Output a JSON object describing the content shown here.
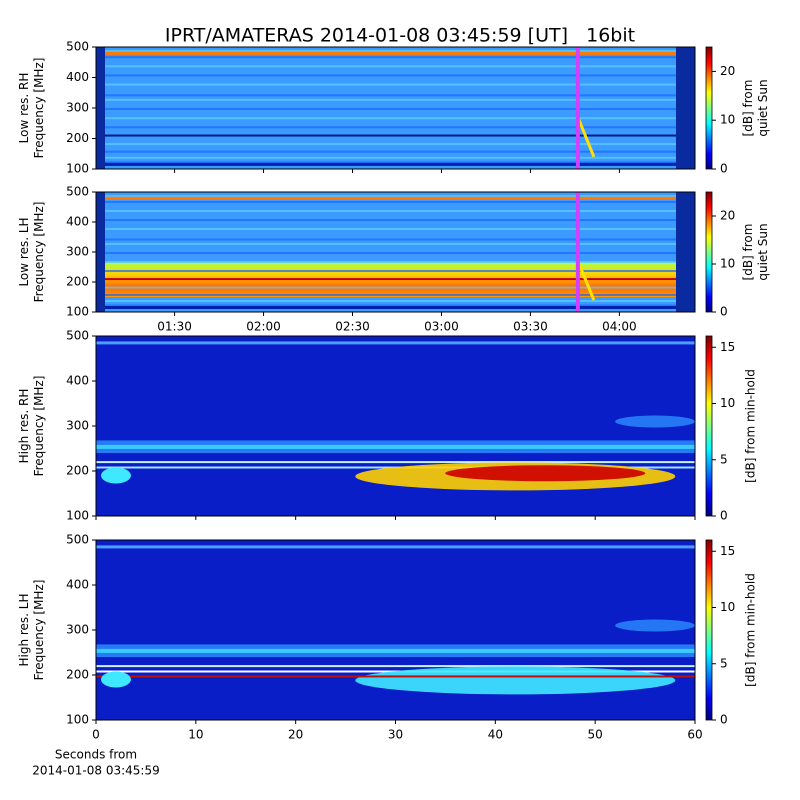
{
  "chart_data": [
    {
      "type": "heatmap",
      "title": "IPRT/AMATERAS 2014-01-08 03:45:59 [UT]   16bit",
      "ylabel": [
        "Low res. RH",
        "Frequency [MHz]"
      ],
      "ylim": [
        100,
        500
      ],
      "yticks": [
        100,
        200,
        300,
        400,
        500
      ],
      "xlim": [
        63.5,
        265.5
      ],
      "highlight_x": 226,
      "colorbar_label": [
        "[dB] from",
        "quiet Sun"
      ],
      "clim": [
        0,
        25
      ],
      "cticks": [
        0,
        10,
        20
      ],
      "colormap": "jet"
    },
    {
      "type": "heatmap",
      "ylabel": [
        "Low res. LH",
        "Frequency [MHz]"
      ],
      "ylim": [
        100,
        500
      ],
      "yticks": [
        100,
        200,
        300,
        400,
        500
      ],
      "xlim": [
        63.5,
        265.5
      ],
      "highlight_x": 226,
      "xticks": [
        {
          "value": 90,
          "label": "01:30"
        },
        {
          "value": 120,
          "label": "02:00"
        },
        {
          "value": 150,
          "label": "02:30"
        },
        {
          "value": 180,
          "label": "03:00"
        },
        {
          "value": 210,
          "label": "03:30"
        },
        {
          "value": 240,
          "label": "04:00"
        }
      ],
      "colorbar_label": [
        "[dB] from",
        "quiet Sun"
      ],
      "clim": [
        0,
        25
      ],
      "cticks": [
        0,
        10,
        20
      ],
      "colormap": "jet"
    },
    {
      "type": "heatmap",
      "ylabel": [
        "High res. RH",
        "Frequency [MHz]"
      ],
      "ylim": [
        100,
        500
      ],
      "yticks": [
        100,
        200,
        300,
        400,
        500
      ],
      "xlim": [
        0,
        60
      ],
      "colorbar_label": [
        "[dB] from min-hold"
      ],
      "clim": [
        0,
        16
      ],
      "cticks": [
        0,
        5,
        10,
        15
      ],
      "colormap": "jet"
    },
    {
      "type": "heatmap",
      "ylabel": [
        "High res. LH",
        "Frequency [MHz]"
      ],
      "ylim": [
        100,
        500
      ],
      "yticks": [
        100,
        200,
        300,
        400,
        500
      ],
      "xlim": [
        0,
        60
      ],
      "xticks": [
        0,
        10,
        20,
        30,
        40,
        50,
        60
      ],
      "xlabel": [
        "Seconds from",
        "2014-01-08 03:45:59"
      ],
      "colorbar_label": [
        "[dB] from min-hold"
      ],
      "clim": [
        0,
        16
      ],
      "cticks": [
        0,
        5,
        10,
        15
      ],
      "colormap": "jet"
    }
  ]
}
